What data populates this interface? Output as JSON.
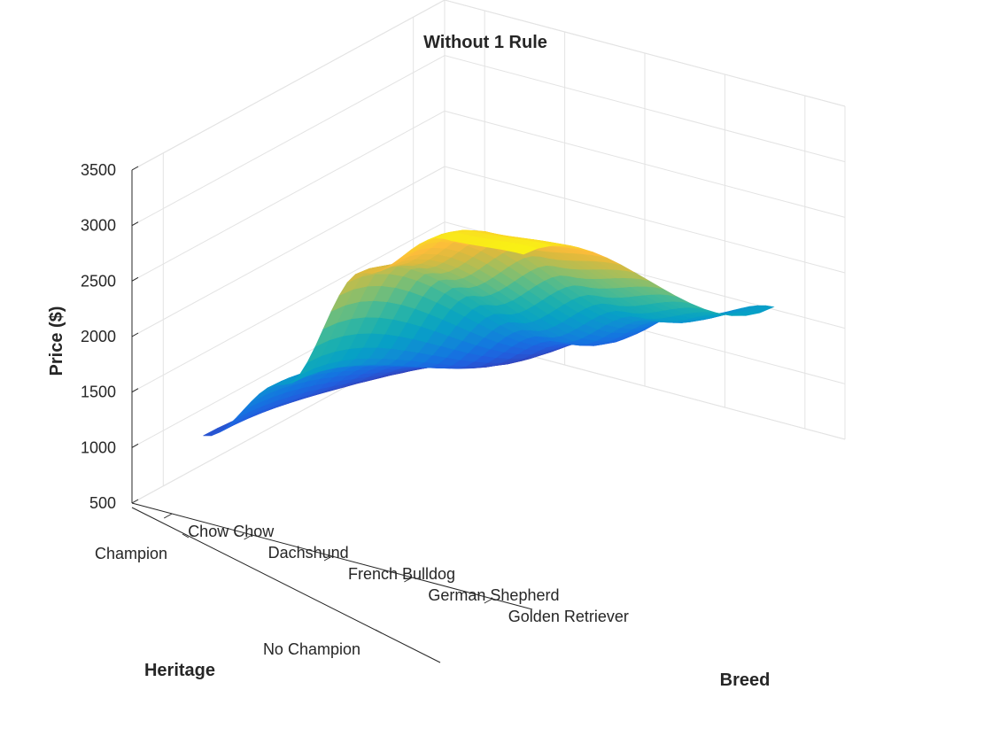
{
  "chart_data": {
    "type": "surface",
    "title": "Without 1 Rule",
    "xlabel": "Breed",
    "ylabel": "Heritage",
    "zlabel": "Price ($)",
    "x_categories": [
      "Chow Chow",
      "Dachshund",
      "French Bulldog",
      "German Shepherd",
      "Golden Retriever"
    ],
    "y_categories": [
      "No Champion",
      "Champion"
    ],
    "zlim": [
      500,
      3500
    ],
    "zticks": [
      500,
      1000,
      1500,
      2000,
      2500,
      3000,
      3500
    ],
    "grid": true,
    "colormap": "parula",
    "surface": {
      "heritage_levels": [
        {
          "name": "No Champion",
          "values": [
            700,
            800,
            1100,
            1500,
            1750
          ]
        },
        {
          "name": "Champion",
          "values": [
            1050,
            1700,
            2900,
            3400,
            3450
          ]
        }
      ],
      "interpolated_between_heritage": true
    }
  }
}
